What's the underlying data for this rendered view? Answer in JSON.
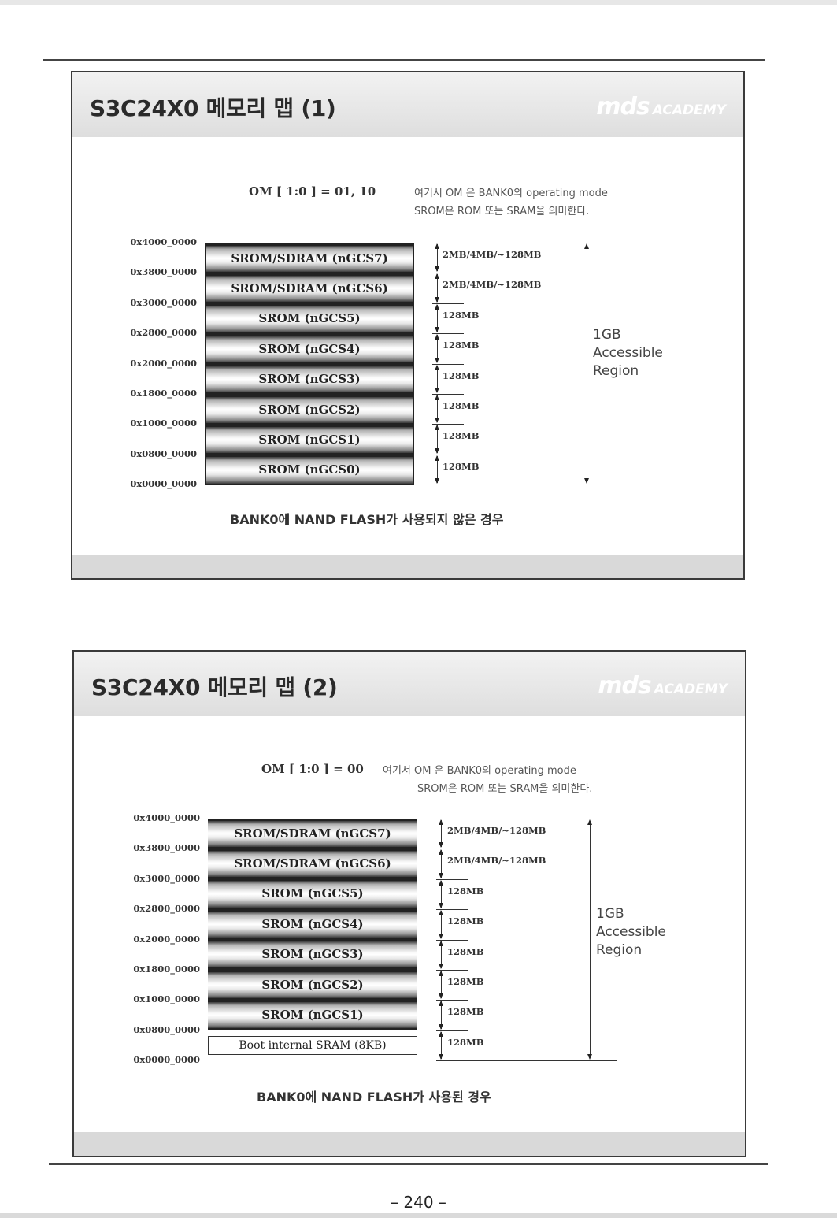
{
  "page": {
    "number": "– 240 –"
  },
  "slides": [
    {
      "title": "S3C24X0 메모리 맵 (1)",
      "logo": {
        "mark": "mds",
        "word": "ACADEMY"
      },
      "om_label": "OM [ 1:0 ] = 01, 10",
      "notes": [
        "여기서 OM 은 BANK0의 operating mode",
        "SROM은 ROM 또는 SRAM을 의미한다."
      ],
      "addresses": [
        "0x4000_0000",
        "0x3800_0000",
        "0x3000_0000",
        "0x2800_0000",
        "0x2000_0000",
        "0x1800_0000",
        "0x1000_0000",
        "0x0800_0000",
        "0x0000_0000"
      ],
      "banks": [
        {
          "label": "SROM/SDRAM (nGCS7)",
          "size": "2MB/4MB/~128MB",
          "style": "gradient"
        },
        {
          "label": "SROM/SDRAM (nGCS6)",
          "size": "2MB/4MB/~128MB",
          "style": "gradient"
        },
        {
          "label": "SROM (nGCS5)",
          "size": "128MB",
          "style": "gradient"
        },
        {
          "label": "SROM (nGCS4)",
          "size": "128MB",
          "style": "gradient"
        },
        {
          "label": "SROM (nGCS3)",
          "size": "128MB",
          "style": "gradient"
        },
        {
          "label": "SROM (nGCS2)",
          "size": "128MB",
          "style": "gradient"
        },
        {
          "label": "SROM (nGCS1)",
          "size": "128MB",
          "style": "gradient"
        },
        {
          "label": "SROM (nGCS0)",
          "size": "128MB",
          "style": "gradient"
        }
      ],
      "region": [
        "1GB",
        "Accessible",
        "Region"
      ],
      "caption": "BANK0에 NAND FLASH가 사용되지 않은 경우"
    },
    {
      "title": "S3C24X0 메모리 맵 (2)",
      "logo": {
        "mark": "mds",
        "word": "ACADEMY"
      },
      "om_label": "OM [ 1:0 ] = 00",
      "notes": [
        "여기서 OM 은 BANK0의 operating mode",
        "SROM은 ROM 또는 SRAM을 의미한다."
      ],
      "addresses": [
        "0x4000_0000",
        "0x3800_0000",
        "0x3000_0000",
        "0x2800_0000",
        "0x2000_0000",
        "0x1800_0000",
        "0x1000_0000",
        "0x0800_0000",
        "0x0000_0000"
      ],
      "banks": [
        {
          "label": "SROM/SDRAM (nGCS7)",
          "size": "2MB/4MB/~128MB",
          "style": "gradient"
        },
        {
          "label": "SROM/SDRAM (nGCS6)",
          "size": "2MB/4MB/~128MB",
          "style": "gradient"
        },
        {
          "label": "SROM (nGCS5)",
          "size": "128MB",
          "style": "gradient"
        },
        {
          "label": "SROM (nGCS4)",
          "size": "128MB",
          "style": "gradient"
        },
        {
          "label": "SROM (nGCS3)",
          "size": "128MB",
          "style": "gradient"
        },
        {
          "label": "SROM (nGCS2)",
          "size": "128MB",
          "style": "gradient"
        },
        {
          "label": "SROM (nGCS1)",
          "size": "128MB",
          "style": "gradient"
        },
        {
          "label": "Boot internal SRAM (8KB)",
          "size": "128MB",
          "style": "plain"
        }
      ],
      "region": [
        "1GB",
        "Accessible",
        "Region"
      ],
      "caption": "BANK0에 NAND FLASH가 사용된 경우"
    }
  ]
}
